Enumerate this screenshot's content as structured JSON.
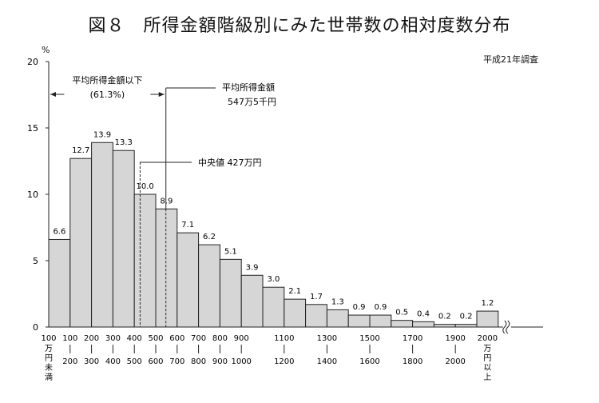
{
  "chart_data": {
    "type": "bar",
    "title": "図８　所得金額階級別にみた世帯数の相対度数分布",
    "note": "平成21年調査",
    "ylabel": "%",
    "ylim": [
      0,
      20
    ],
    "yticks": [
      "0",
      "5",
      "10",
      "15",
      "20"
    ],
    "categories": [
      "100万円未満",
      "100-200",
      "200-300",
      "300-400",
      "400-500",
      "500-600",
      "600-700",
      "700-800",
      "800-900",
      "900-1000",
      "1000-1100",
      "1100-1200",
      "1200-1300",
      "1300-1400",
      "1400-1500",
      "1500-1600",
      "1600-1700",
      "1700-1800",
      "1800-1900",
      "1900-2000",
      "2000万円以上"
    ],
    "values": [
      6.6,
      12.7,
      13.9,
      13.3,
      10.0,
      8.9,
      7.1,
      6.2,
      5.1,
      3.9,
      3.0,
      2.1,
      1.7,
      1.3,
      0.9,
      0.9,
      0.5,
      0.4,
      0.2,
      0.2,
      1.2
    ],
    "value_labels": [
      "6.6",
      "12.7",
      "13.9",
      "13.3",
      "10.0",
      "8.9",
      "7.1",
      "6.2",
      "5.1",
      "3.9",
      "3.0",
      "2.1",
      "1.7",
      "1.3",
      "0.9",
      "0.9",
      "0.5",
      "0.4",
      "0.2",
      "0.2",
      "1.2"
    ],
    "x_labels": [
      {
        "top": "100",
        "bottom": "万円未満",
        "stacked": true,
        "boundary": 0
      },
      {
        "top": "100",
        "bottom": "200",
        "boundary": 1
      },
      {
        "top": "200",
        "bottom": "300",
        "boundary": 2
      },
      {
        "top": "300",
        "bottom": "400",
        "boundary": 3
      },
      {
        "top": "400",
        "bottom": "500",
        "boundary": 4
      },
      {
        "top": "500",
        "bottom": "600",
        "boundary": 5
      },
      {
        "top": "600",
        "bottom": "700",
        "boundary": 6
      },
      {
        "top": "700",
        "bottom": "800",
        "boundary": 7
      },
      {
        "top": "800",
        "bottom": "900",
        "boundary": 8
      },
      {
        "top": "900",
        "bottom": "1000",
        "boundary": 9
      },
      {
        "top": "1100",
        "bottom": "1200",
        "boundary": 11
      },
      {
        "top": "1300",
        "bottom": "1400",
        "boundary": 13
      },
      {
        "top": "1500",
        "bottom": "1600",
        "boundary": 15
      },
      {
        "top": "1700",
        "bottom": "1800",
        "boundary": 17
      },
      {
        "top": "1900",
        "bottom": "2000",
        "boundary": 19
      },
      {
        "top": "2000",
        "bottom": "万円以上",
        "stacked": true,
        "boundary": 20
      }
    ],
    "annotations": {
      "below_mean_line1": "平均所得金額以下",
      "below_mean_line2": "(61.3%)",
      "mean_line1": "平均所得金額",
      "mean_line2": "547万5千円",
      "mean_value": 547.5,
      "median_label": "中央値 427万円",
      "median_value": 427
    }
  }
}
